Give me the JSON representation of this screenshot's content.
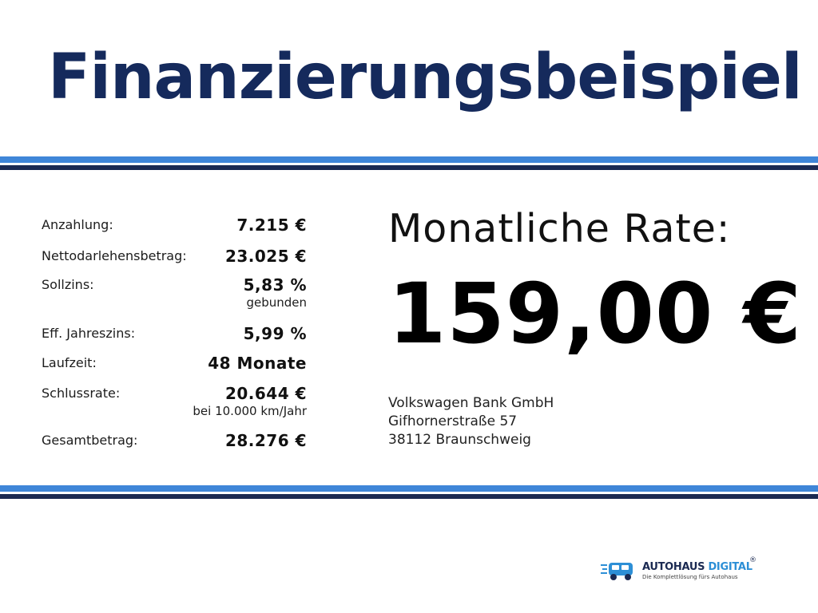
{
  "title": "Finanzierungsbeispiel",
  "details": [
    {
      "label": "Anzahlung:",
      "value": "7.215 €",
      "note": ""
    },
    {
      "label": "Nettodarlehensbetrag:",
      "value": "23.025 €",
      "note": ""
    },
    {
      "label": "Sollzins:",
      "value": "5,83 %",
      "note": "gebunden"
    },
    {
      "label": "Eff. Jahreszins:",
      "value": "5,99 %",
      "note": ""
    },
    {
      "label": "Laufzeit:",
      "value": "48 Monate",
      "note": ""
    },
    {
      "label": "Schlussrate:",
      "value": "20.644 €",
      "note": "bei 10.000 km/Jahr"
    },
    {
      "label": "Gesamtbetrag:",
      "value": "28.276 €",
      "note": ""
    }
  ],
  "rate": {
    "label": "Monatliche Rate:",
    "value": "159,00 €"
  },
  "bank": {
    "name": "Volkswagen Bank GmbH",
    "street": "Gifhornerstraße 57",
    "city": "38112 Braunschweig"
  },
  "logo": {
    "name_part1": "AUTOHAUS",
    "name_part2": "DIGITAL",
    "registered": "®",
    "tagline": "Die Komplettlösung fürs Autohaus",
    "icon": "car-circuit-icon"
  },
  "colors": {
    "title": "#152a5c",
    "stripe_light": "#3f86d8",
    "stripe_dark": "#1b2a52",
    "logo_accent": "#2d8fd6"
  }
}
